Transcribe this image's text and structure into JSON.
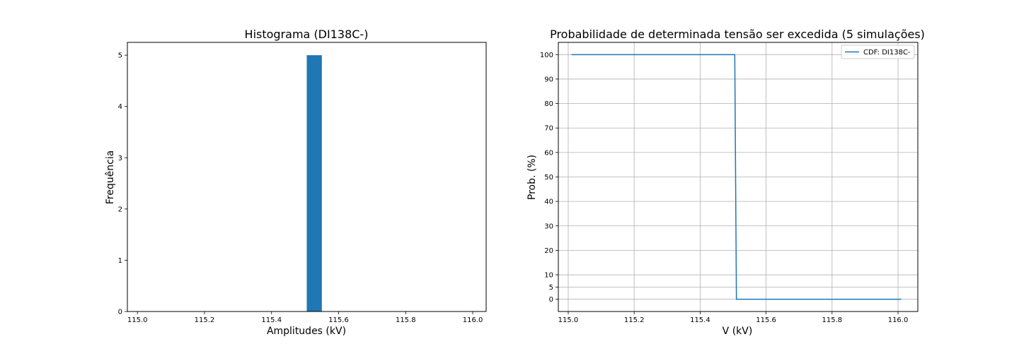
{
  "chart_data": [
    {
      "type": "bar",
      "title": "Histograma (DI138C-)",
      "xlabel": "Amplitudes (kV)",
      "ylabel": "Frequência",
      "xlim": [
        114.97,
        116.04
      ],
      "ylim": [
        0,
        5.25
      ],
      "xticks": [
        "115.0",
        "115.2",
        "115.4",
        "115.6",
        "115.8",
        "116.0"
      ],
      "xtick_values": [
        115.0,
        115.2,
        115.4,
        115.6,
        115.8,
        116.0
      ],
      "yticks": [
        "0",
        "1",
        "2",
        "3",
        "4",
        "5"
      ],
      "ytick_values": [
        0,
        1,
        2,
        3,
        4,
        5
      ],
      "grid": false,
      "color": "#1f77b4",
      "bins": [
        {
          "x0": 115.505,
          "x1": 115.55,
          "value": 5
        }
      ]
    },
    {
      "type": "line",
      "title": "Probabilidade de determinada tensão ser excedida (5 simulações)",
      "xlabel": "V (kV)",
      "ylabel": "Prob. (%)",
      "xlim": [
        114.97,
        116.06
      ],
      "ylim": [
        -5,
        105
      ],
      "xticks": [
        "115.0",
        "115.2",
        "115.4",
        "115.6",
        "115.8",
        "116.0"
      ],
      "xtick_values": [
        115.0,
        115.2,
        115.4,
        115.6,
        115.8,
        116.0
      ],
      "yticks": [
        "0",
        "5",
        "10",
        "20",
        "30",
        "40",
        "50",
        "60",
        "70",
        "80",
        "90",
        "100"
      ],
      "ytick_values": [
        0,
        5,
        10,
        20,
        30,
        40,
        50,
        60,
        70,
        80,
        90,
        100
      ],
      "grid": true,
      "legend_position": "top-right",
      "series": [
        {
          "name": "CDF: DI138C-",
          "color": "#1f77b4",
          "x": [
            115.01,
            115.505,
            115.51,
            116.01
          ],
          "y": [
            100,
            100,
            0,
            0
          ]
        }
      ]
    }
  ]
}
